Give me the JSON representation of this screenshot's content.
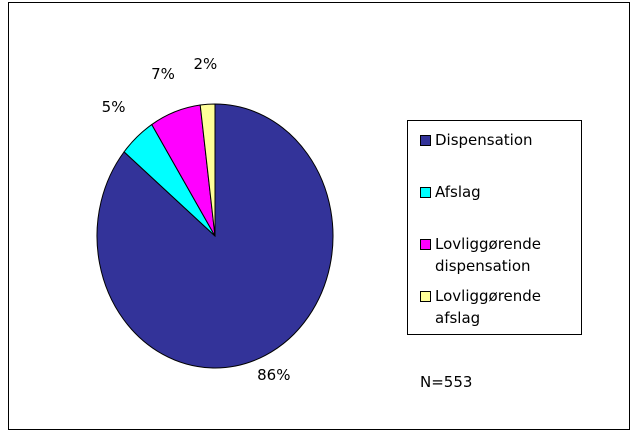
{
  "chart_data": {
    "type": "pie",
    "categories": [
      "Dispensation",
      "Afslag",
      "Lovliggørende dispensation",
      "Lovliggørende afslag"
    ],
    "values": [
      86,
      5,
      7,
      2
    ],
    "value_labels": [
      "86%",
      "5%",
      "7%",
      "2%"
    ],
    "colors": [
      "#333399",
      "#00ffff",
      "#ff00ff",
      "#ffff99"
    ],
    "annotation": "N=553"
  }
}
